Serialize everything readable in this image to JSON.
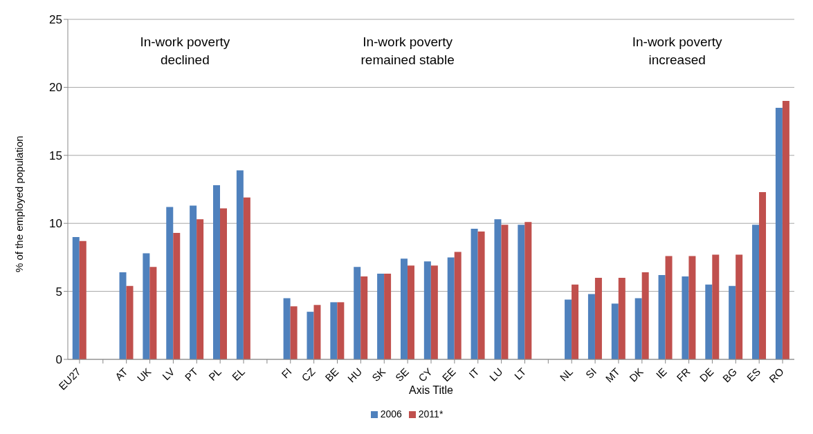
{
  "chart_data": {
    "type": "bar",
    "xlabel": "Axis Title",
    "ylabel": "% of the employed population",
    "categories": [
      "EU27",
      null,
      "AT",
      "UK",
      "LV",
      "PT",
      "PL",
      "EL",
      null,
      "FI",
      "CZ",
      "BE",
      "HU",
      "SK",
      "SE",
      "CY",
      "EE",
      "IT",
      "LU",
      "LT",
      null,
      "NL",
      "SI",
      "MT",
      "DK",
      "IE",
      "FR",
      "DE",
      "BG",
      "ES",
      "RO"
    ],
    "series": [
      {
        "name": "2006",
        "color": "#4f81bd",
        "values": [
          9.0,
          null,
          6.4,
          7.8,
          11.2,
          11.3,
          12.8,
          13.9,
          null,
          4.5,
          3.5,
          4.2,
          6.8,
          6.3,
          7.4,
          7.2,
          7.5,
          9.6,
          10.3,
          9.9,
          null,
          4.4,
          4.8,
          4.1,
          4.5,
          6.2,
          6.1,
          5.5,
          5.4,
          9.9,
          18.5
        ]
      },
      {
        "name": "2011*",
        "color": "#c0504d",
        "values": [
          8.7,
          null,
          5.4,
          6.8,
          9.3,
          10.3,
          11.1,
          11.9,
          null,
          3.9,
          4.0,
          4.2,
          6.1,
          6.3,
          6.9,
          6.9,
          7.9,
          9.4,
          9.9,
          10.1,
          null,
          5.5,
          6.0,
          6.0,
          6.4,
          7.6,
          7.6,
          7.7,
          7.7,
          12.3,
          19.0
        ]
      }
    ],
    "ylim": [
      0,
      25
    ],
    "yticks": [
      0,
      5,
      10,
      15,
      20,
      25
    ],
    "grid": "y",
    "legend": "bottom",
    "annotations": [
      "In-work poverty declined",
      "In-work poverty remained stable",
      "In-work poverty increased"
    ]
  }
}
